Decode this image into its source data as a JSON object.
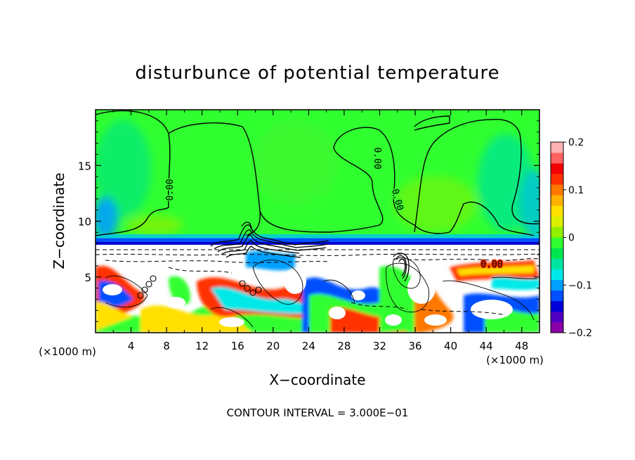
{
  "chart_data": {
    "type": "heatmap",
    "title": "disturbunce of potential temperature",
    "xlabel": "X−coordinate",
    "ylabel": "Z−coordinate",
    "x_unit_left": "(×1000 m)",
    "x_unit_right": "(×1000 m)",
    "xlim": [
      0,
      50
    ],
    "ylim": [
      0,
      20
    ],
    "x_ticks": [
      4,
      8,
      12,
      16,
      20,
      24,
      28,
      32,
      36,
      40,
      44,
      48
    ],
    "y_ticks": [
      5,
      10,
      15
    ],
    "colorbar": {
      "vmin": -0.2,
      "vmax": 0.2,
      "tick_values": [
        0.2,
        0.1,
        0,
        -0.1,
        -0.2
      ],
      "tick_labels": [
        "0.2",
        "0.1",
        "0",
        "−0.1",
        "−0.2"
      ],
      "colors": [
        "#8a00a8",
        "#5000c0",
        "#0000d8",
        "#0050ff",
        "#00a0ff",
        "#00e8e8",
        "#00e6a0",
        "#00e650",
        "#30ff30",
        "#90f000",
        "#d8f000",
        "#ffe000",
        "#ffb000",
        "#ff7800",
        "#ff3000",
        "#f00000",
        "#ff6060",
        "#ffb0b0"
      ]
    },
    "contour_labels": [
      "0.00",
      "0.00",
      "0.00",
      "0.00"
    ],
    "annotation": "CONTOUR INTERVAL = 3.000E−01"
  }
}
